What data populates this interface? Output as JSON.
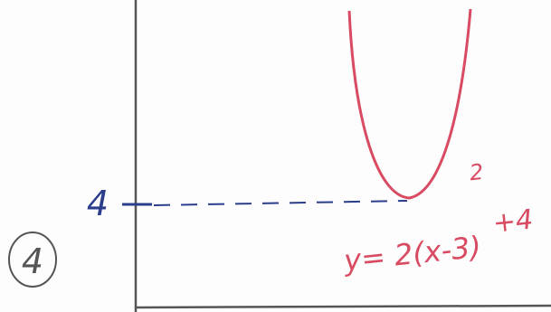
{
  "problem_number": "4",
  "graph": {
    "y_axis_label": "4",
    "equation": {
      "base": "y= 2(x-3)",
      "exponent": "2",
      "tail": "+4"
    }
  }
}
